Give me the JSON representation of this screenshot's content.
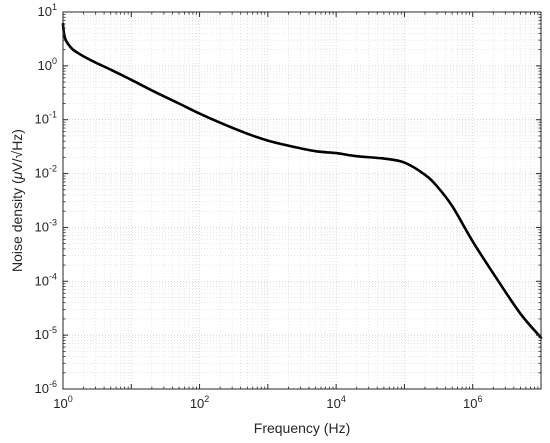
{
  "chart_data": {
    "type": "line",
    "title": "",
    "xlabel": "Frequency (Hz)",
    "ylabel_parts": [
      "Noise density (",
      "μ",
      "V/√Hz)"
    ],
    "xscale": "log",
    "yscale": "log",
    "xlim": [
      1,
      10000000
    ],
    "ylim": [
      1e-06,
      10
    ],
    "grid": "major and minor, dotted",
    "x_ticks": [
      {
        "value": 1,
        "base": "10",
        "exp": "0"
      },
      {
        "value": 100,
        "base": "10",
        "exp": "2"
      },
      {
        "value": 10000,
        "base": "10",
        "exp": "4"
      },
      {
        "value": 1000000,
        "base": "10",
        "exp": "6"
      }
    ],
    "y_ticks": [
      {
        "value": 10,
        "base": "10",
        "exp": "1"
      },
      {
        "value": 1,
        "base": "10",
        "exp": "0"
      },
      {
        "value": 0.1,
        "base": "10",
        "exp": "-1"
      },
      {
        "value": 0.01,
        "base": "10",
        "exp": "-2"
      },
      {
        "value": 0.001,
        "base": "10",
        "exp": "-3"
      },
      {
        "value": 0.0001,
        "base": "10",
        "exp": "-4"
      },
      {
        "value": 1e-05,
        "base": "10",
        "exp": "-5"
      },
      {
        "value": 1e-06,
        "base": "10",
        "exp": "-6"
      }
    ],
    "series": [
      {
        "color": "#000000",
        "x": [
          1.0,
          1.02,
          1.05,
          1.1,
          1.2,
          1.4,
          1.7,
          2,
          3,
          5,
          10,
          20,
          50,
          100,
          200,
          500,
          1000,
          2000,
          5000,
          10000,
          20000,
          50000,
          100000,
          200000,
          300000,
          500000,
          1000000,
          2000000,
          5000000,
          10000000
        ],
        "y": [
          6.0,
          4.5,
          3.6,
          3.0,
          2.5,
          2.0,
          1.7,
          1.5,
          1.15,
          0.85,
          0.55,
          0.35,
          0.2,
          0.13,
          0.088,
          0.055,
          0.041,
          0.033,
          0.026,
          0.024,
          0.021,
          0.019,
          0.016,
          0.0095,
          0.0058,
          0.0025,
          0.00055,
          0.00014,
          2.5e-05,
          9e-06
        ]
      }
    ]
  }
}
